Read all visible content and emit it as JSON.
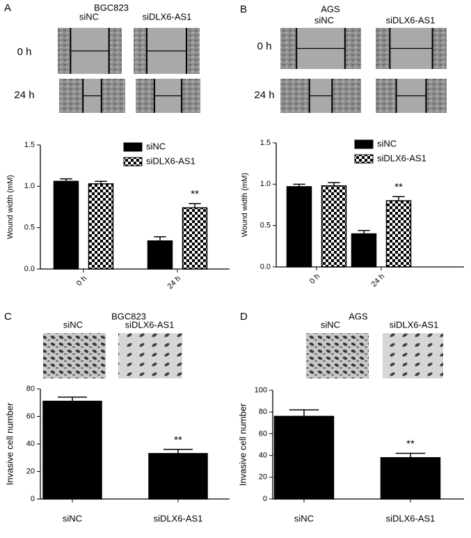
{
  "chart_data": [
    {
      "type": "bar",
      "panel": "A",
      "title": "BGC823",
      "image_columns": [
        "siNC",
        "siDLX6-AS1"
      ],
      "image_rows": [
        "0 h",
        "24 h"
      ],
      "y_label": "Wound width (mM)",
      "categories": [
        "0 h",
        "24 h"
      ],
      "series": [
        {
          "name": "siNC",
          "color": "#000000",
          "values": [
            1.06,
            0.34
          ],
          "errors": [
            0.03,
            0.05
          ]
        },
        {
          "name": "siDLX6-AS1",
          "color": "checker",
          "values": [
            1.03,
            0.74
          ],
          "errors": [
            0.03,
            0.05
          ]
        }
      ],
      "annotations": [
        {
          "text": "**",
          "series": 1,
          "category": 1
        }
      ],
      "ylim": [
        0,
        1.5
      ],
      "yticks": [
        {
          "value": 0,
          "label": "0.0"
        },
        {
          "value": 0.5,
          "label": "0.5"
        },
        {
          "value": 1,
          "label": "1.0"
        },
        {
          "value": 1.5,
          "label": "1.5"
        }
      ],
      "legend": "top"
    },
    {
      "type": "bar",
      "panel": "B",
      "title": "AGS",
      "image_columns": [
        "siNC",
        "siDLX6-AS1"
      ],
      "image_rows": [
        "0 h",
        "24 h"
      ],
      "y_label": "Wound width (mM)",
      "categories": [
        "0 h",
        "24 h"
      ],
      "series": [
        {
          "name": "siNC",
          "color": "#000000",
          "values": [
            0.97,
            0.4
          ],
          "errors": [
            0.03,
            0.04
          ]
        },
        {
          "name": "siDLX6-AS1",
          "color": "checker",
          "values": [
            0.98,
            0.8
          ],
          "errors": [
            0.04,
            0.05
          ]
        }
      ],
      "annotations": [
        {
          "text": "**",
          "series": 1,
          "category": 1
        }
      ],
      "ylim": [
        0,
        1.5
      ],
      "yticks": [
        {
          "value": 0,
          "label": "0.0"
        },
        {
          "value": 0.5,
          "label": "0.5"
        },
        {
          "value": 1,
          "label": "1.0"
        },
        {
          "value": 1.5,
          "label": "1.5"
        }
      ],
      "legend": "top"
    },
    {
      "type": "bar",
      "panel": "C",
      "title": "BGC823",
      "image_columns": [
        "siNC",
        "siDLX6-AS1"
      ],
      "y_label": "Invasive cell number",
      "categories": [
        "siNC",
        "siDLX6-AS1"
      ],
      "series": [
        {
          "color": "#000000",
          "values": [
            71,
            33
          ],
          "errors": [
            3,
            3
          ]
        }
      ],
      "annotations": [
        {
          "text": "**",
          "series": 0,
          "category": 1
        }
      ],
      "ylim": [
        0,
        80
      ],
      "yticks": [
        0,
        20,
        40,
        60,
        80
      ]
    },
    {
      "type": "bar",
      "panel": "D",
      "title": "AGS",
      "image_columns": [
        "siNC",
        "siDLX6-AS1"
      ],
      "y_label": "Invasive cell number",
      "categories": [
        "siNC",
        "siDLX6-AS1"
      ],
      "series": [
        {
          "color": "#000000",
          "values": [
            76,
            38
          ],
          "errors": [
            6,
            4
          ]
        }
      ],
      "annotations": [
        {
          "text": "**",
          "series": 0,
          "category": 1
        }
      ],
      "ylim": [
        0,
        100
      ],
      "yticks": [
        0,
        20,
        40,
        60,
        80,
        100
      ]
    }
  ]
}
